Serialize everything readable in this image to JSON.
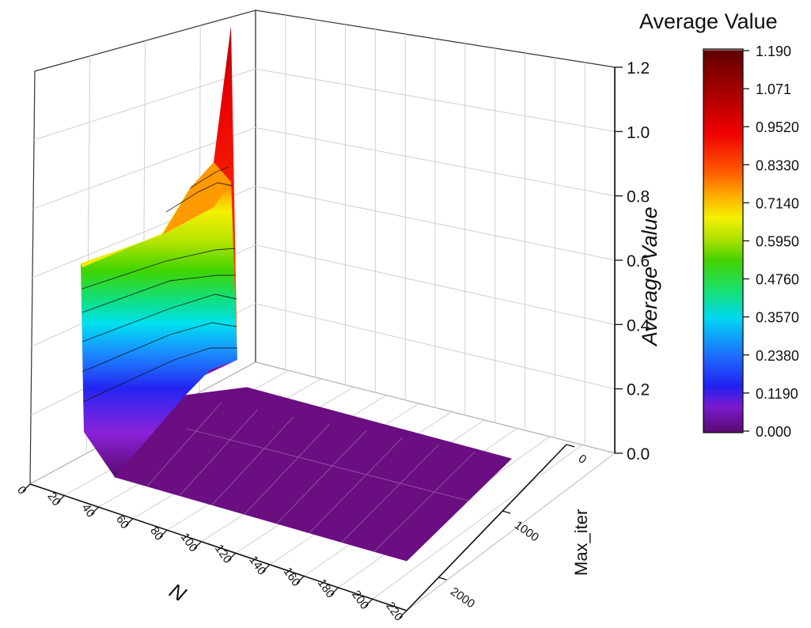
{
  "chart_data": {
    "type": "surface3d",
    "x_axis": {
      "label": "N",
      "range": [
        0,
        220
      ],
      "ticks": [
        "0",
        "20",
        "40",
        "60",
        "80",
        "100",
        "120",
        "140",
        "160",
        "180",
        "200",
        "220"
      ]
    },
    "y_axis": {
      "label": "Max_iter",
      "range": [
        0,
        2500
      ],
      "ticks": [
        "0",
        "1000",
        "2000"
      ]
    },
    "z_axis": {
      "label": "Average Value",
      "range": [
        0,
        1.2
      ],
      "ticks": [
        "0.0",
        "0.2",
        "0.4",
        "0.6",
        "0.8",
        "1.0",
        "1.2"
      ]
    },
    "colorbar": {
      "title": "Average Value",
      "range": [
        0,
        1.19
      ],
      "ticks": [
        "0.000",
        "0.1190",
        "0.2380",
        "0.3570",
        "0.4760",
        "0.5950",
        "0.7140",
        "0.8330",
        "0.9520",
        "1.071",
        "1.190"
      ]
    },
    "surface": {
      "n_values": [
        10,
        20,
        30,
        40,
        50,
        60,
        70,
        80,
        90,
        100,
        110,
        120,
        130,
        140,
        150,
        160,
        170,
        180,
        190,
        200
      ],
      "max_iter_values": [
        0,
        10,
        100,
        500,
        1000,
        1500,
        2000,
        2500
      ],
      "z_at_n_min": [
        1.19,
        0.84,
        0.66,
        0.64,
        0.62,
        0.61,
        0.61,
        0.6
      ],
      "z_at_other_n": 0.0
    },
    "grid": true
  }
}
